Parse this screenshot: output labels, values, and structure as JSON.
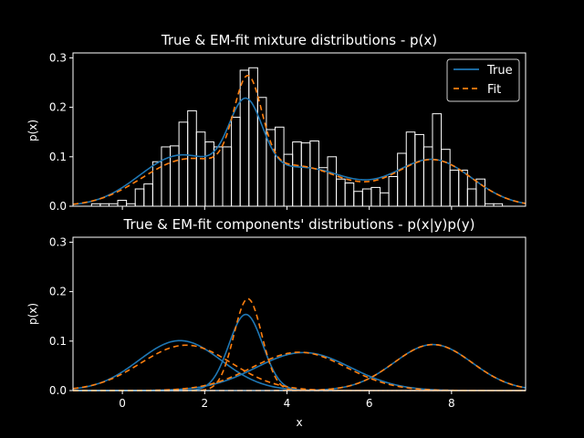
{
  "chart_data": [
    {
      "type": "bar+line",
      "title": "True & EM-fit mixture distributions - p(x)",
      "xlabel": "",
      "ylabel": "p(x)",
      "xlim": [
        -1.2,
        9.8
      ],
      "ylim": [
        0,
        0.31
      ],
      "yticks": [
        "0.0",
        "0.1",
        "0.2",
        "0.3"
      ],
      "yticks_values": [
        0,
        0.1,
        0.2,
        0.3
      ],
      "legend": {
        "position": "top-right",
        "entries": [
          {
            "label": "True",
            "color": "#1f77b4",
            "style": "solid"
          },
          {
            "label": "Fit",
            "color": "#ff7f0e",
            "style": "dashed"
          }
        ]
      },
      "histogram": {
        "bin_start": -0.75,
        "bin_width": 0.2125,
        "color": "#ffffff",
        "values": [
          0.005,
          0.005,
          0.005,
          0.012,
          0.005,
          0.035,
          0.045,
          0.09,
          0.12,
          0.122,
          0.17,
          0.193,
          0.15,
          0.13,
          0.12,
          0.12,
          0.18,
          0.275,
          0.28,
          0.22,
          0.155,
          0.16,
          0.105,
          0.13,
          0.128,
          0.132,
          0.078,
          0.1,
          0.055,
          0.047,
          0.03,
          0.035,
          0.038,
          0.027,
          0.06,
          0.107,
          0.15,
          0.145,
          0.12,
          0.187,
          0.115,
          0.073,
          0.073,
          0.035,
          0.055,
          0.005,
          0.005
        ]
      },
      "series": [
        {
          "name": "True",
          "color": "#1f77b4",
          "dash": "none",
          "components": [
            {
              "w": 0.4,
              "mu": 1.4,
              "sigma": 1.0
            },
            {
              "w": 0.25,
              "mu": 3.0,
              "sigma": 0.41
            },
            {
              "w": 0.35,
              "mu": 4.4,
              "sigma": 1.15
            },
            {
              "w": 0.35,
              "mu": 7.55,
              "sigma": 0.95
            }
          ],
          "scale": 0.6327
        },
        {
          "name": "Fit",
          "color": "#ff7f0e",
          "dash": "6,4",
          "components": [
            {
              "w": 0.4,
              "mu": 1.55,
              "sigma": 1.1
            },
            {
              "w": 0.25,
              "mu": 3.05,
              "sigma": 0.34
            },
            {
              "w": 0.35,
              "mu": 4.3,
              "sigma": 1.14
            },
            {
              "w": 0.35,
              "mu": 7.55,
              "sigma": 0.95
            }
          ],
          "scale": 0.6327
        }
      ]
    },
    {
      "type": "line",
      "title": "True & EM-fit components' distributions - p(x|y)p(y)",
      "xlabel": "x",
      "ylabel": "p(x)",
      "xlim": [
        -1.2,
        9.8
      ],
      "ylim": [
        0,
        0.31
      ],
      "xticks": [
        "0",
        "2",
        "4",
        "6",
        "8"
      ],
      "xticks_values": [
        0,
        2,
        4,
        6,
        8
      ],
      "yticks": [
        "0.0",
        "0.1",
        "0.2",
        "0.3"
      ],
      "yticks_values": [
        0,
        0.1,
        0.2,
        0.3
      ],
      "series": [
        {
          "name": "True",
          "color": "#1f77b4",
          "dash": "none",
          "components": [
            {
              "w": 0.4,
              "mu": 1.4,
              "sigma": 1.0
            },
            {
              "w": 0.25,
              "mu": 3.0,
              "sigma": 0.41
            },
            {
              "w": 0.35,
              "mu": 4.4,
              "sigma": 1.15
            },
            {
              "w": 0.35,
              "mu": 7.55,
              "sigma": 0.95
            }
          ],
          "scale": 0.6327
        },
        {
          "name": "Fit",
          "color": "#ff7f0e",
          "dash": "6,4",
          "components": [
            {
              "w": 0.4,
              "mu": 1.55,
              "sigma": 1.1
            },
            {
              "w": 0.25,
              "mu": 3.05,
              "sigma": 0.34
            },
            {
              "w": 0.35,
              "mu": 4.3,
              "sigma": 1.14
            },
            {
              "w": 0.35,
              "mu": 7.55,
              "sigma": 0.95
            }
          ],
          "scale": 0.6327
        }
      ]
    }
  ]
}
